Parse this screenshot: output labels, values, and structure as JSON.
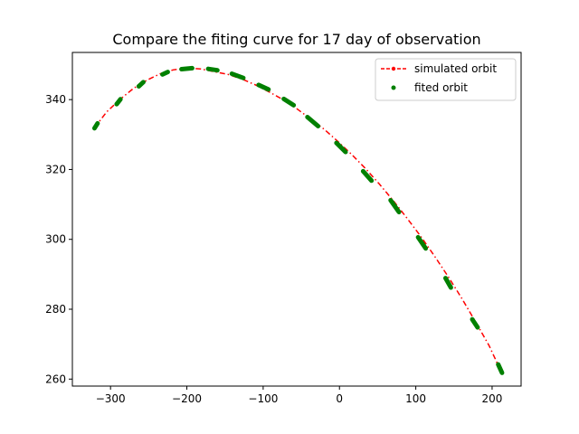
{
  "chart_data": {
    "type": "line",
    "title": "Compare the fiting curve for 17 day of observation",
    "xlabel": "",
    "ylabel": "",
    "xlim": [
      -350,
      238
    ],
    "ylim": [
      258,
      353.5
    ],
    "xticks": [
      -300,
      -200,
      -100,
      0,
      100,
      200
    ],
    "yticks": [
      260,
      280,
      300,
      320,
      340
    ],
    "grid": false,
    "legend_position": "top-right",
    "series": [
      {
        "name": "simulated orbit",
        "style": "red dash-dot line with markers",
        "color": "#ff0000",
        "points": [
          [
            -321,
            332
          ],
          [
            -305,
            336.5
          ],
          [
            -288,
            340
          ],
          [
            -270,
            343.2
          ],
          [
            -252,
            345.6
          ],
          [
            -235,
            347.4
          ],
          [
            -218,
            348.5
          ],
          [
            -200,
            349
          ],
          [
            -182,
            348.8
          ],
          [
            -164,
            348
          ],
          [
            -146,
            347.2
          ],
          [
            -128,
            345.9
          ],
          [
            -110,
            344.2
          ],
          [
            -92,
            342.2
          ],
          [
            -74,
            340
          ],
          [
            -56,
            337.4
          ],
          [
            -38,
            334.5
          ],
          [
            -20,
            331.5
          ],
          [
            -2,
            328
          ],
          [
            16,
            324.3
          ],
          [
            34,
            320.3
          ],
          [
            52,
            315.9
          ],
          [
            70,
            311.2
          ],
          [
            88,
            306.2
          ],
          [
            106,
            301
          ],
          [
            124,
            295.4
          ],
          [
            142,
            289.5
          ],
          [
            160,
            283.2
          ],
          [
            178,
            276.5
          ],
          [
            196,
            269.6
          ],
          [
            210,
            263
          ]
        ]
      },
      {
        "name": "fited orbit",
        "style": "green dots",
        "color": "#008000",
        "segments": [
          [
            [
              -321,
              331.8
            ],
            [
              -317,
              333.2
            ]
          ],
          [
            [
              -292,
              338.7
            ],
            [
              -287,
              340.1
            ]
          ],
          [
            [
              -263,
              343.8
            ],
            [
              -257,
              345
            ]
          ],
          [
            [
              -232,
              347.2
            ],
            [
              -225,
              347.9
            ]
          ],
          [
            [
              -207,
              348.7
            ],
            [
              -193,
              349
            ]
          ],
          [
            [
              -172,
              348.8
            ],
            [
              -160,
              348.4
            ]
          ],
          [
            [
              -141,
              347.4
            ],
            [
              -126,
              346.2
            ]
          ],
          [
            [
              -106,
              344.2
            ],
            [
              -93,
              342.9
            ]
          ],
          [
            [
              -73,
              340.2
            ],
            [
              -60,
              338.4
            ]
          ],
          [
            [
              -42,
              335
            ],
            [
              -28,
              332.4
            ]
          ],
          [
            [
              -4,
              327.6
            ],
            [
              8,
              325
            ]
          ],
          [
            [
              31,
              319.5
            ],
            [
              42,
              316.8
            ]
          ],
          [
            [
              67,
              311.2
            ],
            [
              78,
              307.8
            ]
          ],
          [
            [
              103,
              300.6
            ],
            [
              113,
              297.4
            ]
          ],
          [
            [
              139,
              288.9
            ],
            [
              146,
              286.2
            ]
          ],
          [
            [
              174,
              277.1
            ],
            [
              181,
              274.8
            ]
          ],
          [
            [
              208,
              264.2
            ],
            [
              213,
              261.8
            ]
          ]
        ]
      }
    ]
  }
}
